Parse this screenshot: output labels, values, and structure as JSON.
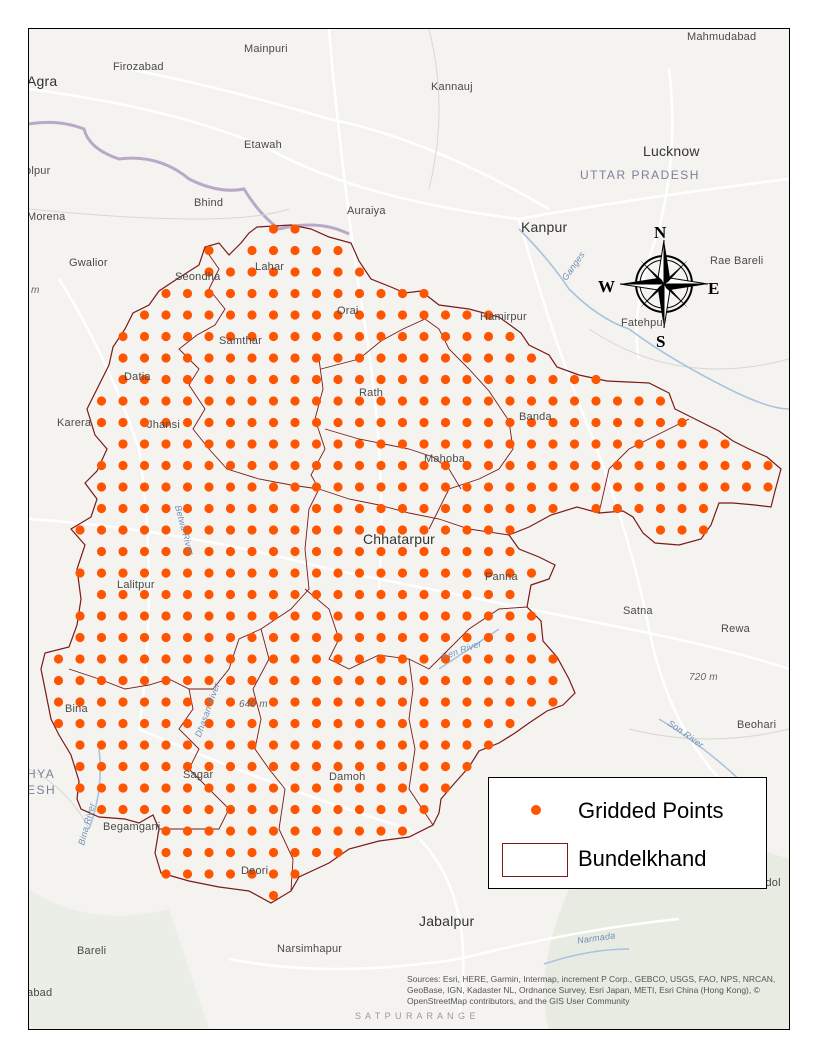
{
  "map": {
    "places": {
      "mahmudabad": "Mahmudabad",
      "agra": "Agra",
      "firozabad": "Firozabad",
      "mainpuri": "Mainpuri",
      "kannauj": "Kannauj",
      "etawah": "Etawah",
      "lucknow": "Lucknow",
      "uttar_pradesh": "UTTAR PRADESH",
      "dholpur": "olpur",
      "bhind": "Bhind",
      "auraiya": "Auraiya",
      "morena": "Morena",
      "kanpur": "Kanpur",
      "rae_bareli": "Rae Bareli",
      "gwalior": "Gwalior",
      "seondha": "Seondha",
      "lahar": "Lahar",
      "orai": "Orai",
      "hamirpur": "Hamirpur",
      "fatehpur": "Fatehpur",
      "samthar": "Samthar",
      "datia": "Datia",
      "rath": "Rath",
      "karera": "Karera",
      "jhansi": "Jhansi",
      "banda": "Banda",
      "mahoba": "Mahoba",
      "chhatarpur": "Chhatarpur",
      "lalitpur": "Lalitpur",
      "panna": "Panna",
      "satna": "Satna",
      "rewa": "Rewa",
      "elev_720": "720 m",
      "elev_640": "640 m",
      "elev_m": "m",
      "bina": "Bina",
      "beohari": "Beohari",
      "madhya": "HYA",
      "pradesh": "ESH",
      "sagar": "Sagar",
      "damoh": "Damoh",
      "begamganj": "Begamganj",
      "deori": "Deori",
      "shahdol": "Shahdol",
      "jabalpur": "Jabalpur",
      "bareli": "Bareli",
      "narsimhapur": "Narsimhapur",
      "abad": "abad",
      "satpura": "S A T P U R A    R A N G E",
      "ganges": "Ganges",
      "ken_river": "Ken River",
      "son_river": "Son River",
      "bina_river": "Bina River",
      "betwa_river": "Betwa River",
      "narmada": "Narmada",
      "dhasan_river": "Dhasan River"
    },
    "compass": {
      "north": "N",
      "south": "S",
      "east": "E",
      "west": "W"
    },
    "credits": "Sources: Esri, HERE, Garmin, Intermap, increment P Corp., GEBCO, USGS, FAO, NPS, NRCAN, GeoBase, IGN, Kadaster NL, Ordnance Survey, Esri Japan, METI, Esri China (Hong Kong), © OpenStreetMap contributors, and the GIS User Community"
  },
  "legend": {
    "points_label": "Gridded Points",
    "boundary_label": "Bundelkhand"
  },
  "colors": {
    "point": "#ff5500",
    "boundary": "#7a1a1a",
    "basemap": "#f4f3ef",
    "road": "#ffffff",
    "river": "#a9c3df"
  }
}
